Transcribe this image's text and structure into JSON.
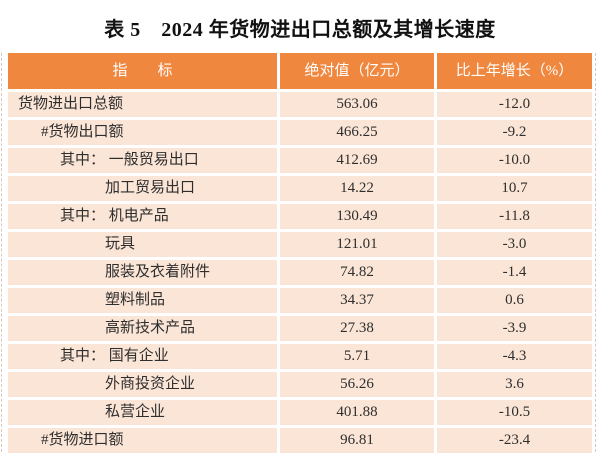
{
  "title": "表 5　2024 年货物进出口总额及其增长速度",
  "table": {
    "columns": [
      "指　　标",
      "绝对值（亿元）",
      "比上年增长（%）"
    ],
    "rows": [
      {
        "label": "货物进出口总额",
        "indent": 0,
        "value": "563.06",
        "growth": "-12.0"
      },
      {
        "label": "#货物出口额",
        "indent": 1,
        "value": "466.25",
        "growth": "-9.2"
      },
      {
        "label": "其中： 一般贸易出口",
        "indent": 2,
        "value": "412.69",
        "growth": "-10.0"
      },
      {
        "label": "加工贸易出口",
        "indent": 3,
        "value": "14.22",
        "growth": "10.7"
      },
      {
        "label": "其中： 机电产品",
        "indent": 2,
        "value": "130.49",
        "growth": "-11.8"
      },
      {
        "label": "玩具",
        "indent": 3,
        "value": "121.01",
        "growth": "-3.0"
      },
      {
        "label": "服装及衣着附件",
        "indent": 3,
        "value": "74.82",
        "growth": "-1.4"
      },
      {
        "label": "塑料制品",
        "indent": 3,
        "value": "34.37",
        "growth": "0.6"
      },
      {
        "label": "高新技术产品",
        "indent": 3,
        "value": "27.38",
        "growth": "-3.9"
      },
      {
        "label": "其中： 国有企业",
        "indent": 2,
        "value": "5.71",
        "growth": "-4.3"
      },
      {
        "label": "外商投资企业",
        "indent": 3,
        "value": "56.26",
        "growth": "3.6"
      },
      {
        "label": "私营企业",
        "indent": 3,
        "value": "401.88",
        "growth": "-10.5"
      },
      {
        "label": "#货物进口额",
        "indent": 1,
        "value": "96.81",
        "growth": "-23.4"
      }
    ]
  },
  "chart_data": {
    "type": "table",
    "title": "表 5　2024 年货物进出口总额及其增长速度",
    "columns": [
      "指标",
      "绝对值（亿元）",
      "比上年增长（%）"
    ],
    "categories": [
      "货物进出口总额",
      "#货物出口额",
      "其中：一般贸易出口",
      "加工贸易出口",
      "其中：机电产品",
      "玩具",
      "服装及衣着附件",
      "塑料制品",
      "高新技术产品",
      "其中：国有企业",
      "外商投资企业",
      "私营企业",
      "#货物进口额"
    ],
    "series": [
      {
        "name": "绝对值（亿元）",
        "values": [
          563.06,
          466.25,
          412.69,
          14.22,
          130.49,
          121.01,
          74.82,
          34.37,
          27.38,
          5.71,
          56.26,
          401.88,
          96.81
        ]
      },
      {
        "name": "比上年增长（%）",
        "values": [
          -12.0,
          -9.2,
          -10.0,
          10.7,
          -11.8,
          -3.0,
          -1.4,
          0.6,
          -3.9,
          -4.3,
          3.6,
          -10.5,
          -23.4
        ]
      }
    ]
  },
  "colors": {
    "header_bg": "#F0873E",
    "row_bg": "#FBE5D6",
    "header_text": "#FFFFFF",
    "body_text": "#2E2E2E"
  }
}
